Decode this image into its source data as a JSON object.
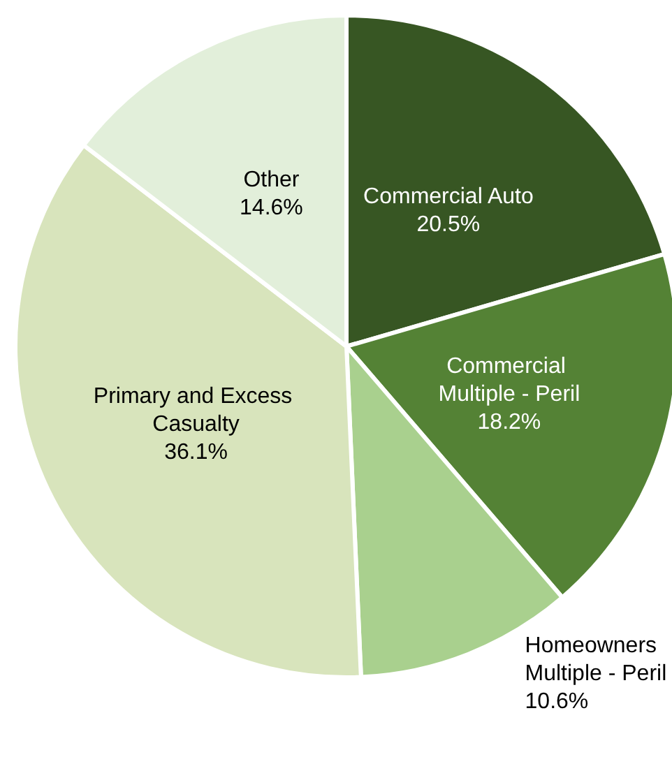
{
  "chart_data": {
    "type": "pie",
    "categories": [
      "Commercial Auto",
      "Commercial Multiple - Peril",
      "Homeowners Multiple - Peril",
      "Primary and Excess Casualty",
      "Other"
    ],
    "values": [
      20.5,
      18.2,
      10.6,
      36.1,
      14.6
    ],
    "value_labels": [
      "20.5%",
      "18.2%",
      "10.6%",
      "36.1%",
      "14.6%"
    ],
    "colors": [
      "#375623",
      "#548235",
      "#a9d08e",
      "#d8e4bc",
      "#e2efda"
    ],
    "legend": false
  }
}
